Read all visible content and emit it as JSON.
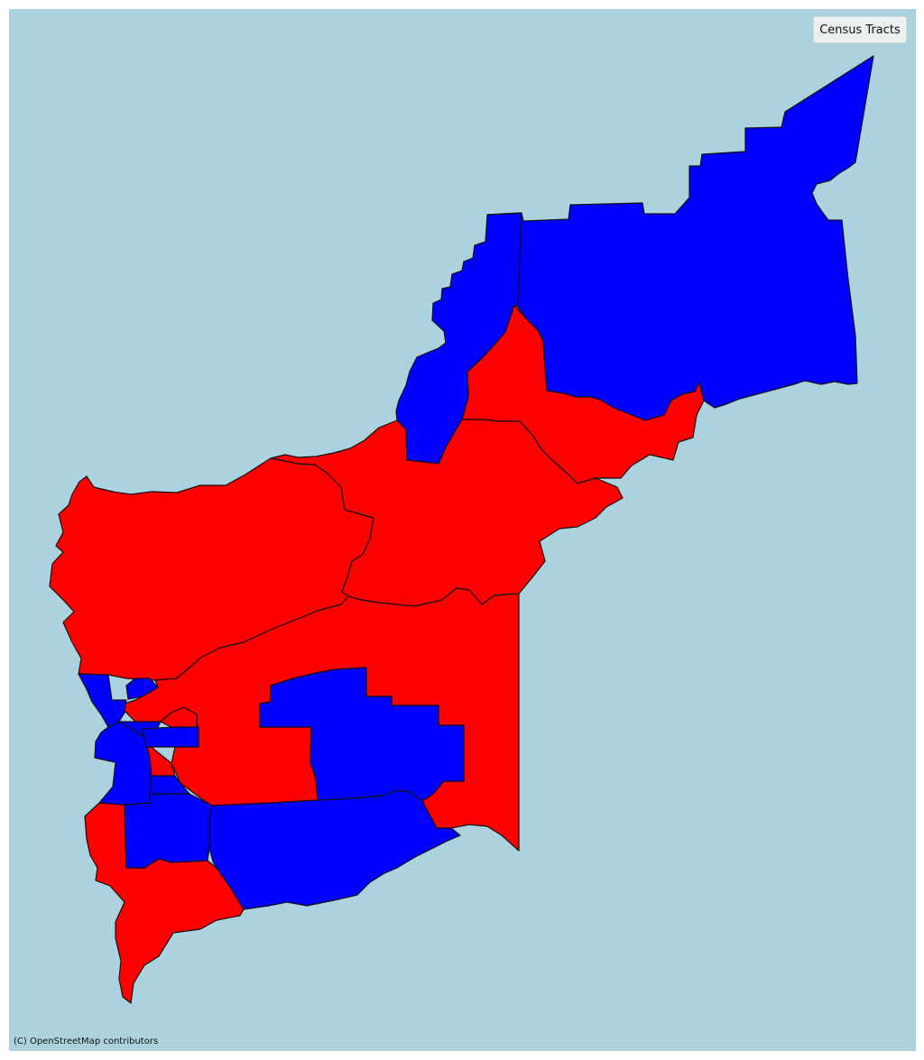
{
  "map": {
    "background_color": "#acd2df",
    "legend_title": "Census Tracts",
    "attribution": "(C) OpenStreetMap contributors",
    "category_colors": {
      "blue": "#0000ff",
      "red": "#ff0000"
    },
    "outline_color": "#111111",
    "tracts": [
      {
        "id": "tract-northeast",
        "category": "blue"
      },
      {
        "id": "tract-east-central",
        "category": "red"
      },
      {
        "id": "tract-north-corridor",
        "category": "blue"
      },
      {
        "id": "tract-west-central",
        "category": "red"
      },
      {
        "id": "tract-central",
        "category": "red"
      },
      {
        "id": "tract-south-central-large",
        "category": "red"
      },
      {
        "id": "tract-central-south-blob",
        "category": "blue"
      },
      {
        "id": "tract-south-blue-large",
        "category": "blue"
      },
      {
        "id": "tract-southwest-red",
        "category": "red"
      },
      {
        "id": "tract-south-small-blue",
        "category": "blue"
      },
      {
        "id": "tract-west-small-blue-1",
        "category": "blue"
      },
      {
        "id": "tract-west-small-blue-2",
        "category": "blue"
      },
      {
        "id": "tract-west-small-blue-3",
        "category": "blue"
      },
      {
        "id": "tract-west-small-red-1",
        "category": "red"
      },
      {
        "id": "tract-west-small-blue-4",
        "category": "blue"
      },
      {
        "id": "tract-west-small-blue-5",
        "category": "blue"
      },
      {
        "id": "tract-west-small-red-2",
        "category": "red"
      },
      {
        "id": "tract-west-small-blue-6",
        "category": "blue"
      }
    ]
  }
}
